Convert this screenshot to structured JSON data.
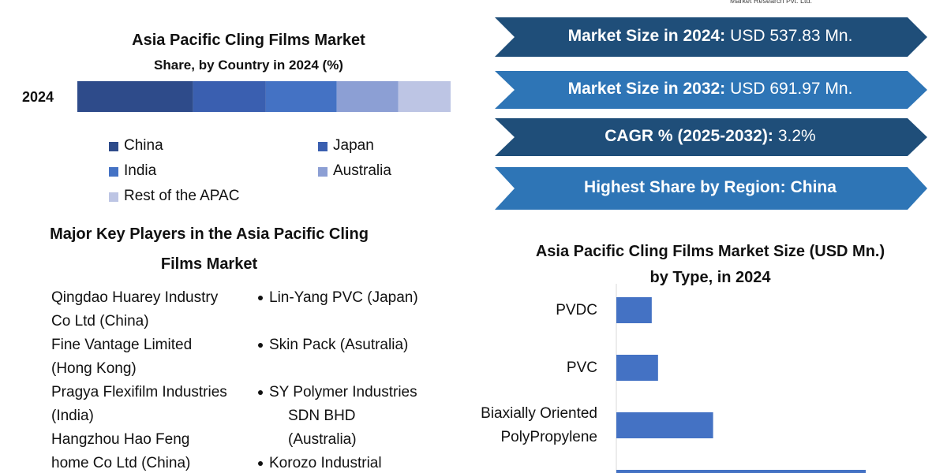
{
  "logo_text": "Market Research Pvt. Ltd.",
  "chart_data": [
    {
      "type": "stacked-bar",
      "title": "Asia Pacific Cling Films Market",
      "subtitle": "Share, by Country in 2024 (%)",
      "categories": [
        "2024"
      ],
      "xlim": [
        0,
        100
      ],
      "series": [
        {
          "name": "China",
          "color": "#2e4b8a",
          "values": [
            31
          ]
        },
        {
          "name": "Japan",
          "color": "#3a5fb0",
          "values": [
            19.5
          ]
        },
        {
          "name": "India",
          "color": "#4472c4",
          "values": [
            19
          ]
        },
        {
          "name": "Australia",
          "color": "#8c9fd4",
          "values": [
            16.5
          ]
        },
        {
          "name": "Rest of the APAC",
          "color": "#bdc5e4",
          "values": [
            14
          ]
        }
      ]
    },
    {
      "type": "hbar",
      "title": "Asia Pacific Cling Films Market Size (USD Mn.) by Type, in 2024",
      "categories": [
        "PVDC",
        "PVC",
        "Biaxially Oriented PolyPropylene",
        null
      ],
      "values": [
        45,
        53,
        123,
        317
      ],
      "color": "#4472c4",
      "xlim": [
        0,
        320
      ]
    }
  ],
  "stats": [
    {
      "label": "Market Size in 2024:",
      "value": "USD 537.83 Mn.",
      "color": "#1f4e79"
    },
    {
      "label": "Market Size in 2032:",
      "value": "USD 691.97 Mn.",
      "color": "#2e75b6"
    },
    {
      "label": "CAGR % (2025-2032):",
      "value": "3.2%",
      "color": "#1f4e79"
    },
    {
      "label": "Highest Share by Region:",
      "value": "China",
      "color": "#2e75b6",
      "value_bold": true
    }
  ],
  "key_players": {
    "title": "Major Key Players in the Asia Pacific Cling Films Market",
    "left": [
      "Qingdao Huarey Industry Co Ltd (China)",
      "Fine Vantage Limited (Hong Kong)",
      "Pragya Flexifilm Industries (India)",
      "Hangzhou Hao Feng home Co Ltd (China)"
    ],
    "right": [
      "Lin-Yang PVC (Japan)",
      "Skin Pack (Asutralia)",
      "SY Polymer Industries SDN BHD (Australia)",
      "Korozo Industrial"
    ]
  }
}
